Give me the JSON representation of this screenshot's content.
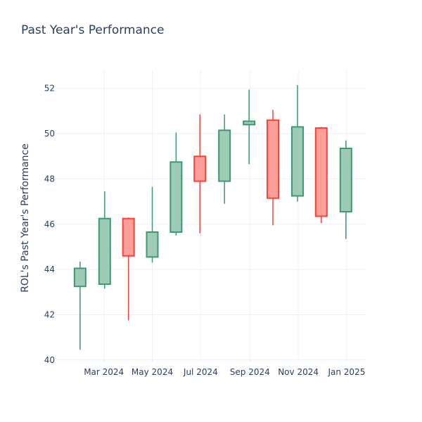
{
  "chart_data": {
    "type": "candlestick",
    "title": "Past Year's Performance",
    "xlabel": "",
    "ylabel": "ROL's Past Year's Performance",
    "ylim": [
      39.9,
      52.8
    ],
    "yticks": [
      40,
      42,
      44,
      46,
      48,
      50,
      52
    ],
    "xlim": [
      "2024-01-01",
      "2025-01-25"
    ],
    "xticks": [
      {
        "date": "2024-03-01",
        "label": "Mar 2024"
      },
      {
        "date": "2024-05-01",
        "label": "May 2024"
      },
      {
        "date": "2024-07-01",
        "label": "Jul 2024"
      },
      {
        "date": "2024-09-01",
        "label": "Sep 2024"
      },
      {
        "date": "2024-11-01",
        "label": "Nov 2024"
      },
      {
        "date": "2025-01-01",
        "label": "Jan 2025"
      }
    ],
    "grid": true,
    "colors": {
      "increasing_line": "#3d9970",
      "increasing_fill": "#9ecbb6",
      "decreasing_line": "#ff4136",
      "decreasing_fill": "#ff9f9a",
      "grid": "#ebf0f8",
      "text": "#2a3f5f"
    },
    "candles": [
      {
        "date": "2024-01-31",
        "open": 43.25,
        "high": 44.35,
        "low": 40.45,
        "close": 44.05
      },
      {
        "date": "2024-03-02",
        "open": 43.35,
        "high": 47.45,
        "low": 43.15,
        "close": 46.25
      },
      {
        "date": "2024-04-01",
        "open": 46.25,
        "high": 46.3,
        "low": 41.75,
        "close": 44.6
      },
      {
        "date": "2024-05-01",
        "open": 44.55,
        "high": 47.65,
        "low": 44.3,
        "close": 45.65
      },
      {
        "date": "2024-05-31",
        "open": 45.65,
        "high": 50.05,
        "low": 45.5,
        "close": 48.75
      },
      {
        "date": "2024-06-30",
        "open": 49.0,
        "high": 50.85,
        "low": 45.6,
        "close": 47.9
      },
      {
        "date": "2024-07-31",
        "open": 47.9,
        "high": 50.85,
        "low": 46.9,
        "close": 50.15
      },
      {
        "date": "2024-08-31",
        "open": 50.4,
        "high": 51.95,
        "low": 48.65,
        "close": 50.55
      },
      {
        "date": "2024-09-30",
        "open": 50.6,
        "high": 51.05,
        "low": 45.95,
        "close": 47.15
      },
      {
        "date": "2024-10-31",
        "open": 47.25,
        "high": 52.15,
        "low": 47.0,
        "close": 50.3
      },
      {
        "date": "2024-11-30",
        "open": 50.25,
        "high": 50.3,
        "low": 46.05,
        "close": 46.35
      },
      {
        "date": "2024-12-31",
        "open": 46.55,
        "high": 49.7,
        "low": 45.35,
        "close": 49.35
      }
    ]
  }
}
